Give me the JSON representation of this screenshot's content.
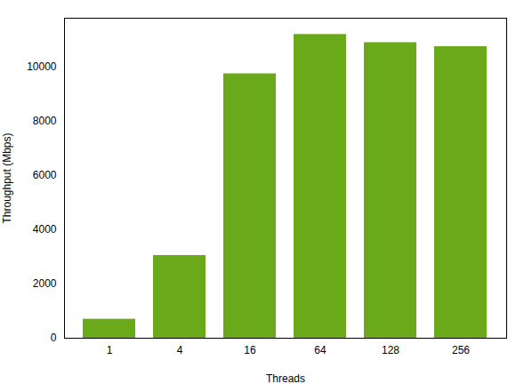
{
  "chart_data": {
    "type": "bar",
    "categories": [
      "1",
      "4",
      "16",
      "64",
      "128",
      "256"
    ],
    "values": [
      700,
      3050,
      9750,
      11200,
      10900,
      10750
    ],
    "color": "#6aaa1a",
    "xlabel": "Threads",
    "ylabel": "Throughput (Mbps)",
    "ylim": [
      0,
      11800
    ],
    "yticks": [
      0,
      2000,
      4000,
      6000,
      8000,
      10000
    ],
    "grid": false
  }
}
